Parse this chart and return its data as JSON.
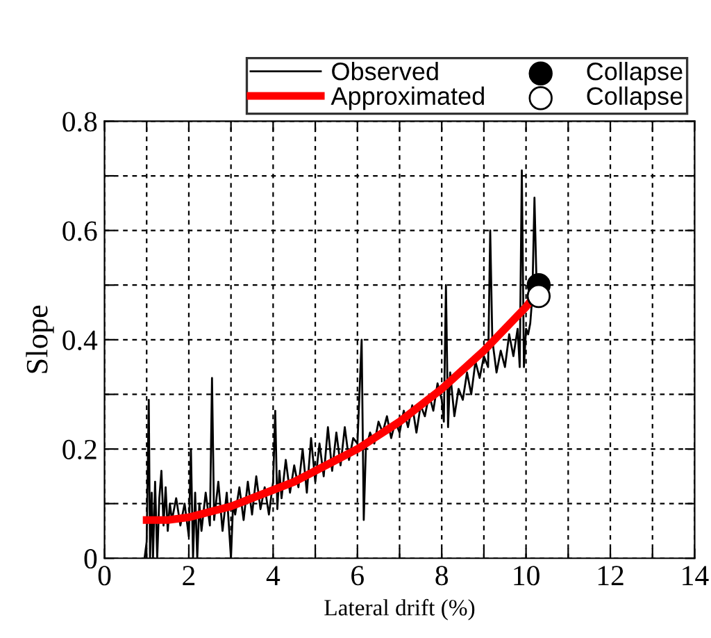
{
  "chart_data": {
    "type": "line",
    "xlabel": "Lateral drift (%)",
    "ylabel": "Slope",
    "xlim": [
      0,
      14
    ],
    "ylim": [
      0,
      0.8
    ],
    "xticks": [
      0,
      {
        "value": 1,
        "label": null
      },
      2,
      {
        "value": 3,
        "label": null
      },
      4,
      {
        "value": 5,
        "label": null
      },
      6,
      {
        "value": 7,
        "label": null
      },
      8,
      {
        "value": 9,
        "label": null
      },
      10,
      {
        "value": 11,
        "label": null
      },
      12,
      {
        "value": 13,
        "label": null
      },
      14
    ],
    "yticks": [
      0,
      {
        "value": 0.1,
        "label": null
      },
      0.2,
      {
        "value": 0.3,
        "label": null
      },
      0.4,
      {
        "value": 0.5,
        "label": null
      },
      0.6,
      {
        "value": 0.7,
        "label": null
      },
      0.8
    ],
    "grid": true,
    "legend": "top",
    "series": [
      {
        "name": "Observed",
        "color": "#000000",
        "marker": "none",
        "x": [
          0.95,
          1.0,
          1.05,
          1.08,
          1.12,
          1.15,
          1.2,
          1.25,
          1.3,
          1.35,
          1.4,
          1.45,
          1.5,
          1.55,
          1.6,
          1.7,
          1.8,
          1.9,
          2.0,
          2.05,
          2.1,
          2.15,
          2.2,
          2.25,
          2.3,
          2.4,
          2.5,
          2.55,
          2.6,
          2.7,
          2.8,
          2.9,
          3.0,
          3.05,
          3.1,
          3.2,
          3.3,
          3.4,
          3.5,
          3.6,
          3.7,
          3.8,
          3.9,
          4.0,
          4.05,
          4.1,
          4.15,
          4.2,
          4.3,
          4.4,
          4.5,
          4.6,
          4.7,
          4.8,
          4.9,
          5.0,
          5.1,
          5.2,
          5.3,
          5.4,
          5.5,
          5.6,
          5.7,
          5.8,
          5.9,
          6.0,
          6.1,
          6.15,
          6.2,
          6.3,
          6.4,
          6.5,
          6.6,
          6.7,
          6.8,
          6.9,
          7.0,
          7.1,
          7.2,
          7.3,
          7.4,
          7.5,
          7.6,
          7.7,
          7.8,
          7.9,
          8.0,
          8.05,
          8.1,
          8.15,
          8.2,
          8.3,
          8.4,
          8.5,
          8.6,
          8.7,
          8.8,
          8.9,
          9.0,
          9.1,
          9.15,
          9.2,
          9.3,
          9.4,
          9.5,
          9.6,
          9.7,
          9.8,
          9.85,
          9.9,
          9.95,
          10.0,
          10.05,
          10.1,
          10.15,
          10.2,
          10.25,
          10.3
        ],
        "values": [
          0.0,
          0.03,
          0.29,
          0.0,
          0.12,
          0.0,
          0.14,
          0.0,
          0.11,
          0.16,
          0.06,
          0.13,
          0.05,
          0.1,
          0.07,
          0.11,
          0.06,
          0.1,
          0.04,
          0.2,
          0.0,
          0.12,
          0.0,
          0.1,
          0.05,
          0.12,
          0.06,
          0.33,
          0.07,
          0.14,
          0.05,
          0.12,
          0.0,
          0.1,
          0.08,
          0.13,
          0.07,
          0.14,
          0.08,
          0.15,
          0.09,
          0.13,
          0.08,
          0.14,
          0.27,
          0.09,
          0.16,
          0.11,
          0.18,
          0.12,
          0.17,
          0.13,
          0.2,
          0.12,
          0.22,
          0.14,
          0.21,
          0.15,
          0.24,
          0.16,
          0.23,
          0.17,
          0.24,
          0.18,
          0.22,
          0.21,
          0.4,
          0.07,
          0.2,
          0.23,
          0.21,
          0.25,
          0.23,
          0.26,
          0.22,
          0.25,
          0.23,
          0.27,
          0.24,
          0.28,
          0.23,
          0.28,
          0.26,
          0.3,
          0.27,
          0.32,
          0.29,
          0.25,
          0.5,
          0.24,
          0.34,
          0.26,
          0.31,
          0.29,
          0.34,
          0.3,
          0.36,
          0.33,
          0.37,
          0.35,
          0.6,
          0.4,
          0.34,
          0.38,
          0.35,
          0.41,
          0.37,
          0.42,
          0.35,
          0.71,
          0.35,
          0.42,
          0.41,
          0.43,
          0.48,
          0.66,
          0.5,
          0.5
        ]
      },
      {
        "name": "Approximated",
        "color": "#ff0000",
        "marker": "none",
        "x": [
          1.0,
          1.5,
          2.0,
          2.5,
          3.0,
          3.5,
          4.0,
          4.5,
          5.0,
          5.5,
          6.0,
          6.5,
          7.0,
          7.5,
          8.0,
          8.5,
          9.0,
          9.5,
          10.0,
          10.1
        ],
        "values": [
          0.07,
          0.07,
          0.075,
          0.085,
          0.095,
          0.11,
          0.125,
          0.14,
          0.16,
          0.18,
          0.2,
          0.225,
          0.25,
          0.28,
          0.31,
          0.345,
          0.38,
          0.42,
          0.46,
          0.47
        ]
      },
      {
        "name": "Collapse",
        "color": "#000000",
        "type": "scatter",
        "marker": "circle",
        "x": [
          10.3
        ],
        "values": [
          0.5
        ]
      },
      {
        "name": "Collapse",
        "color": "#ffffff",
        "type": "scatter",
        "marker": "circle",
        "x": [
          10.3
        ],
        "values": [
          0.48
        ]
      }
    ]
  }
}
